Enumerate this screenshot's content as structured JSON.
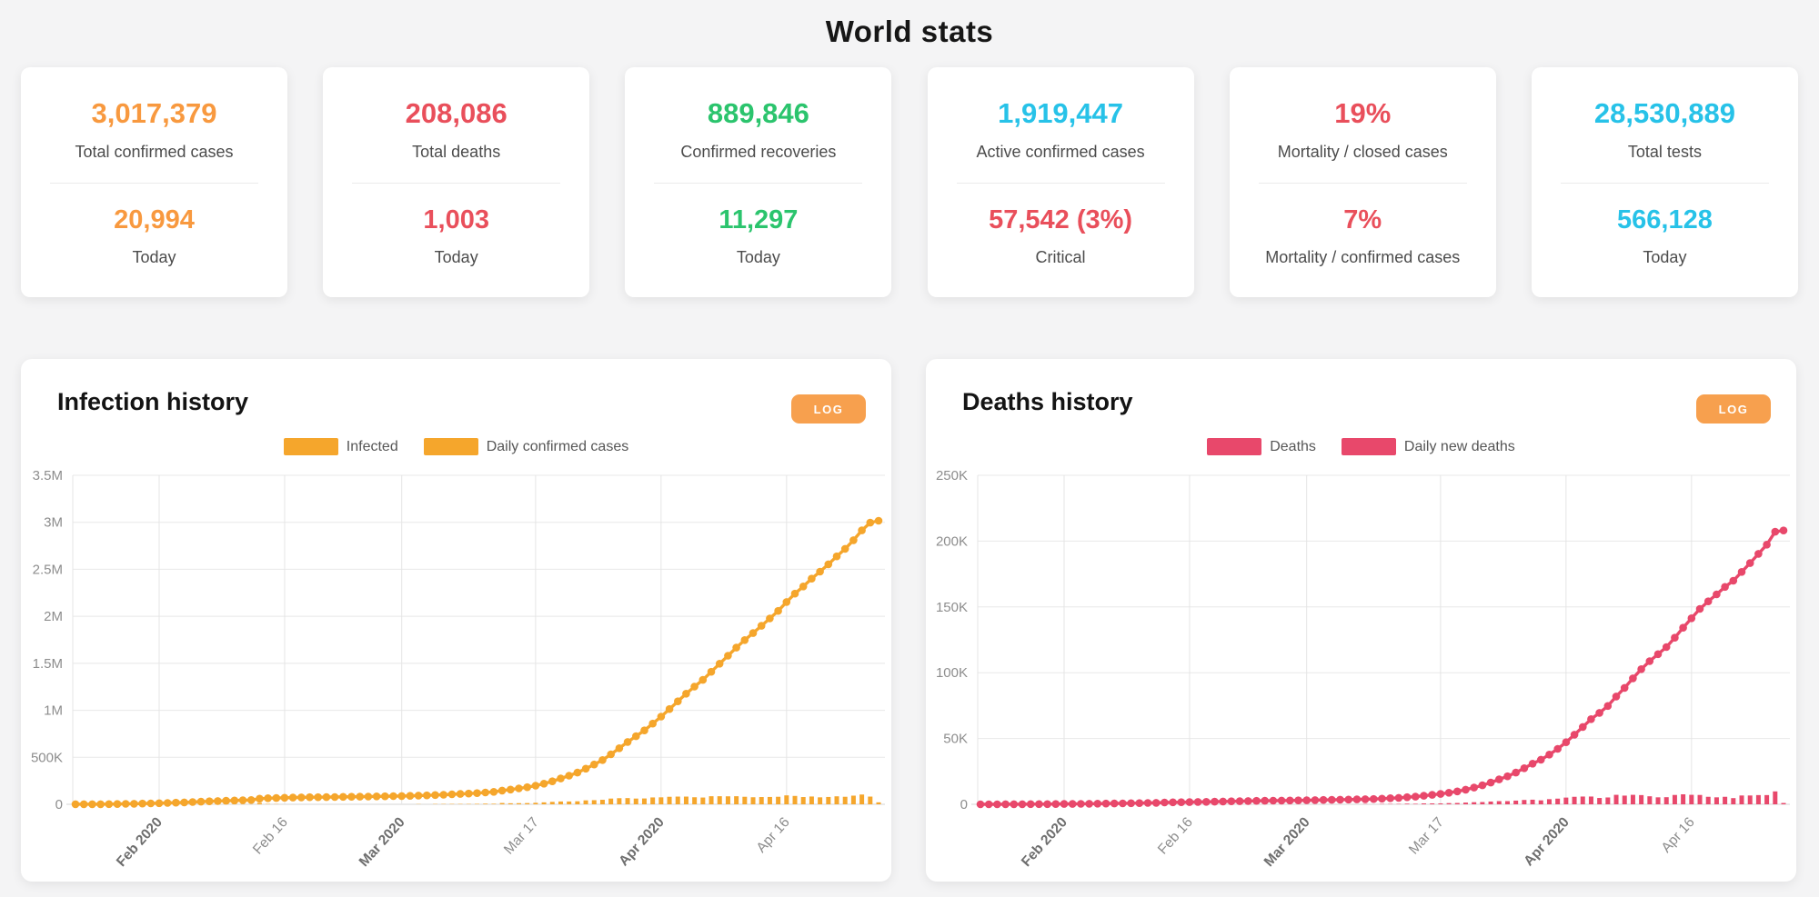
{
  "page": {
    "title": "World stats",
    "background_color": "#f4f4f5"
  },
  "cards": [
    {
      "primary_value": "3,017,379",
      "primary_color": "#f8993f",
      "primary_label": "Total confirmed cases",
      "secondary_value": "20,994",
      "secondary_color": "#f8993f",
      "secondary_label": "Today"
    },
    {
      "primary_value": "208,086",
      "primary_color": "#e94f5b",
      "primary_label": "Total deaths",
      "secondary_value": "1,003",
      "secondary_color": "#e94f5b",
      "secondary_label": "Today"
    },
    {
      "primary_value": "889,846",
      "primary_color": "#2bc46d",
      "primary_label": "Confirmed recoveries",
      "secondary_value": "11,297",
      "secondary_color": "#2bc46d",
      "secondary_label": "Today"
    },
    {
      "primary_value": "1,919,447",
      "primary_color": "#27c2e8",
      "primary_label": "Active confirmed cases",
      "secondary_value": "57,542 (3%)",
      "secondary_color": "#e94f5b",
      "secondary_label": "Critical"
    },
    {
      "primary_value": "19%",
      "primary_color": "#e94f5b",
      "primary_label": "Mortality / closed cases",
      "secondary_value": "7%",
      "secondary_color": "#e94f5b",
      "secondary_label": "Mortality / confirmed cases"
    },
    {
      "primary_value": "28,530,889",
      "primary_color": "#27c2e8",
      "primary_label": "Total tests",
      "secondary_value": "566,128",
      "secondary_color": "#27c2e8",
      "secondary_label": "Today"
    }
  ],
  "chart_data": [
    {
      "type": "line+bar",
      "panel_title": "Infection history",
      "log_button_label": "LOG",
      "log_button_color": "#f7a04e",
      "series_color": "#f5a62c",
      "legend": [
        {
          "label": "Infected"
        },
        {
          "label": "Daily confirmed cases"
        }
      ],
      "x_start_date": "Jan 22 2020",
      "x_end_date": "Apr 27 2020",
      "x_tick_labels": [
        "Feb 2020",
        "Feb 16",
        "Mar 2020",
        "Mar 17",
        "Apr 2020",
        "Apr 16"
      ],
      "x_tick_days": [
        10,
        25,
        39,
        55,
        70,
        85
      ],
      "x_tick_major": [
        true,
        false,
        true,
        false,
        true,
        false
      ],
      "y_tick_labels": [
        "3.5M",
        "3M",
        "2.5M",
        "2M",
        "1.5M",
        "1M",
        "500K",
        "0"
      ],
      "y_max_thousands": 3500,
      "grid": true,
      "legend_position": "top-center",
      "line_series": {
        "name": "Infected",
        "unit": "thousands of cumulative confirmed cases, daily from Jan 22 to Apr 27 2020",
        "values": [
          0.6,
          0.7,
          0.9,
          1.4,
          2.1,
          2.8,
          4.6,
          6.1,
          7.8,
          9.8,
          12,
          14.6,
          17.4,
          20.6,
          24.5,
          28.3,
          31.5,
          34.9,
          37.6,
          40.6,
          43.1,
          45.2,
          60.3,
          64.4,
          67.1,
          69.3,
          71.3,
          73.3,
          75.1,
          75.7,
          76.7,
          77.8,
          78.9,
          79.9,
          80.9,
          82.5,
          83.7,
          85.2,
          86.6,
          88.4,
          90.3,
          92.8,
          95.1,
          98.4,
          102,
          106,
          110,
          114,
          119,
          126,
          132,
          146,
          157,
          169,
          182,
          198,
          219,
          245,
          275,
          305,
          337,
          379,
          423,
          471,
          532,
          597,
          663,
          724,
          786,
          859,
          933,
          1013,
          1095,
          1177,
          1252,
          1324,
          1410,
          1496,
          1581,
          1667,
          1747,
          1822,
          1899,
          1977,
          2057,
          2152,
          2241,
          2318,
          2401,
          2475,
          2553,
          2638,
          2718,
          2810,
          2914,
          2996,
          3017
        ]
      },
      "bar_series": {
        "name": "Daily confirmed cases",
        "unit": "thousands per day",
        "derivation": "first_difference_of_line_series"
      }
    },
    {
      "type": "line+bar",
      "panel_title": "Deaths history",
      "log_button_label": "LOG",
      "log_button_color": "#f7a04e",
      "series_color": "#e8486b",
      "legend": [
        {
          "label": "Deaths"
        },
        {
          "label": "Daily new deaths"
        }
      ],
      "x_start_date": "Jan 22 2020",
      "x_end_date": "Apr 27 2020",
      "x_tick_labels": [
        "Feb 2020",
        "Feb 16",
        "Mar 2020",
        "Mar 17",
        "Apr 2020",
        "Apr 16"
      ],
      "x_tick_days": [
        10,
        25,
        39,
        55,
        70,
        85
      ],
      "x_tick_major": [
        true,
        false,
        true,
        false,
        true,
        false
      ],
      "y_tick_labels": [
        "250K",
        "200K",
        "150K",
        "100K",
        "50K",
        "0"
      ],
      "y_max_thousands": 250,
      "grid": true,
      "legend_position": "top-center",
      "line_series": {
        "name": "Deaths",
        "unit": "thousands of cumulative deaths, daily from Jan 22 to Apr 27 2020",
        "values": [
          0.02,
          0.03,
          0.03,
          0.04,
          0.06,
          0.08,
          0.11,
          0.13,
          0.17,
          0.21,
          0.26,
          0.3,
          0.36,
          0.43,
          0.49,
          0.57,
          0.64,
          0.72,
          0.81,
          0.91,
          1.02,
          1.12,
          1.37,
          1.49,
          1.6,
          1.67,
          1.77,
          1.87,
          2,
          2.12,
          2.25,
          2.36,
          2.46,
          2.62,
          2.71,
          2.77,
          2.81,
          2.87,
          2.94,
          3.05,
          3.2,
          3.3,
          3.4,
          3.5,
          3.6,
          3.7,
          3.9,
          4,
          4.3,
          4.6,
          4.9,
          5.4,
          5.8,
          6.5,
          7.2,
          7.9,
          8.8,
          9.8,
          11.1,
          12.7,
          14.4,
          16.5,
          18.9,
          21.3,
          24.1,
          27.4,
          30.9,
          33.9,
          37.8,
          42.1,
          47.2,
          52.9,
          58.8,
          64.7,
          69.5,
          74.7,
          81.9,
          88.5,
          95.7,
          102.7,
          108.8,
          114.1,
          119.5,
          126.6,
          134.2,
          141.4,
          148.5,
          154.2,
          159.5,
          165.2,
          169.9,
          176.6,
          183.3,
          190.3,
          197.3,
          207.1,
          208.1
        ]
      },
      "bar_series": {
        "name": "Daily new deaths",
        "unit": "thousands per day",
        "derivation": "first_difference_of_line_series"
      }
    }
  ]
}
